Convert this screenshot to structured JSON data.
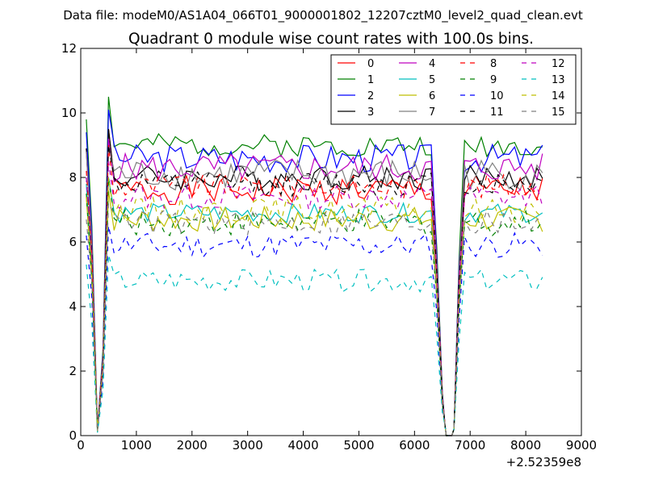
{
  "chart_data": {
    "type": "line",
    "suptitle": "Data file: modeM0/AS1A04_066T01_9000001802_12207cztM0_level2_quad_clean.evt",
    "title": "Quadrant 0 module wise count rates with 100.0s bins.",
    "xlabel": "",
    "ylabel": "",
    "x_offset_label": "+2.52359e8",
    "xlim": [
      0,
      9000
    ],
    "ylim": [
      0,
      12
    ],
    "xticks": [
      0,
      1000,
      2000,
      3000,
      4000,
      5000,
      6000,
      7000,
      8000,
      9000
    ],
    "yticks": [
      0,
      2,
      4,
      6,
      8,
      10,
      12
    ],
    "legend_position": "top-right",
    "legend_columns": 4,
    "time_bins": {
      "start": 100,
      "end": 8300,
      "step": 100,
      "gap_start": 6600,
      "gap_end": 6700,
      "dips": [
        {
          "x": 200,
          "level": 0.72
        },
        {
          "x": 300,
          "level": 0.02
        },
        {
          "x": 400,
          "level": 0.3
        },
        {
          "x": 6400,
          "level": 0.65
        },
        {
          "x": 6500,
          "level": 0.15
        },
        {
          "x": 6550,
          "level": 0.02
        },
        {
          "x": 6750,
          "level": 0.05
        },
        {
          "x": 6800,
          "level": 0.6
        }
      ]
    },
    "series": [
      {
        "name": "0",
        "color": "#ff0000",
        "dash": false,
        "start": 8.9,
        "peak": 9.5,
        "mean": 7.6,
        "amp": 0.45,
        "seed": 1
      },
      {
        "name": "1",
        "color": "#008000",
        "dash": false,
        "start": 9.8,
        "peak": 10.5,
        "mean": 9.0,
        "amp": 0.35,
        "seed": 2
      },
      {
        "name": "2",
        "color": "#0000ff",
        "dash": false,
        "start": 9.4,
        "peak": 10.1,
        "mean": 8.6,
        "amp": 0.45,
        "seed": 3
      },
      {
        "name": "3",
        "color": "#000000",
        "dash": false,
        "start": 8.9,
        "peak": 9.5,
        "mean": 8.0,
        "amp": 0.4,
        "seed": 4
      },
      {
        "name": "4",
        "color": "#bf00bf",
        "dash": false,
        "start": 8.8,
        "peak": 9.2,
        "mean": 8.3,
        "amp": 0.45,
        "seed": 5
      },
      {
        "name": "5",
        "color": "#00bfbf",
        "dash": false,
        "start": 7.8,
        "peak": 8.0,
        "mean": 6.9,
        "amp": 0.3,
        "seed": 6
      },
      {
        "name": "6",
        "color": "#bfbf00",
        "dash": false,
        "start": 7.4,
        "peak": 7.6,
        "mean": 6.7,
        "amp": 0.4,
        "seed": 7
      },
      {
        "name": "7",
        "color": "#808080",
        "dash": false,
        "start": 8.8,
        "peak": 9.0,
        "mean": 8.1,
        "amp": 0.5,
        "seed": 8
      },
      {
        "name": "8",
        "color": "#ff0000",
        "dash": true,
        "start": 8.2,
        "peak": 9.0,
        "mean": 7.7,
        "amp": 0.4,
        "seed": 9
      },
      {
        "name": "9",
        "color": "#008000",
        "dash": true,
        "start": 7.5,
        "peak": 8.0,
        "mean": 6.6,
        "amp": 0.4,
        "seed": 10
      },
      {
        "name": "10",
        "color": "#0000ff",
        "dash": true,
        "start": 6.2,
        "peak": 6.5,
        "mean": 5.9,
        "amp": 0.4,
        "seed": 11
      },
      {
        "name": "11",
        "color": "#000000",
        "dash": true,
        "start": 8.0,
        "peak": 9.0,
        "mean": 7.8,
        "amp": 0.4,
        "seed": 12
      },
      {
        "name": "12",
        "color": "#bf00bf",
        "dash": true,
        "start": 8.0,
        "peak": 8.5,
        "mean": 7.4,
        "amp": 0.4,
        "seed": 13
      },
      {
        "name": "13",
        "color": "#00bfbf",
        "dash": true,
        "start": 5.3,
        "peak": 5.6,
        "mean": 4.8,
        "amp": 0.35,
        "seed": 14
      },
      {
        "name": "14",
        "color": "#bfbf00",
        "dash": true,
        "start": 7.4,
        "peak": 8.0,
        "mean": 7.0,
        "amp": 0.4,
        "seed": 15
      },
      {
        "name": "15",
        "color": "#808080",
        "dash": true,
        "start": 6.7,
        "peak": 7.2,
        "mean": 6.6,
        "amp": 0.4,
        "seed": 16
      }
    ]
  }
}
